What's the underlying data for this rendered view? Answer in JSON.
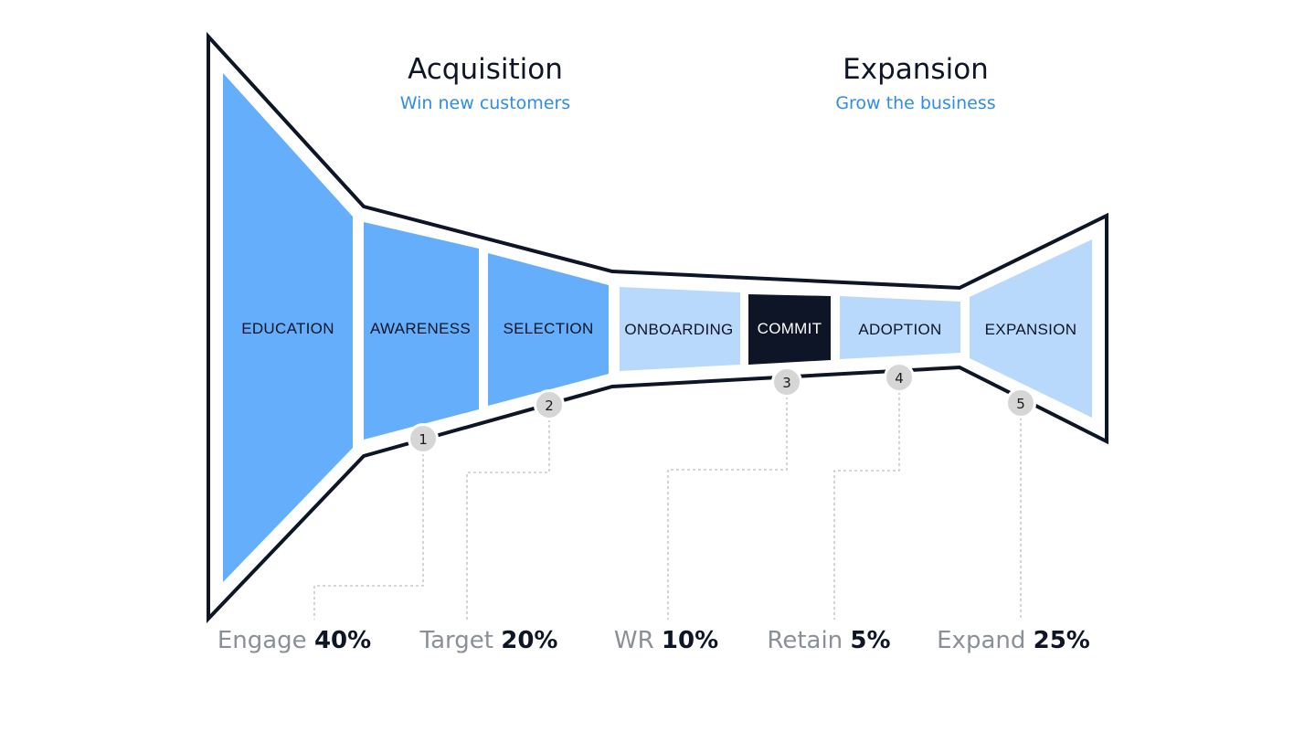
{
  "sections": [
    {
      "title": "Acquisition",
      "subtitle": "Win new customers"
    },
    {
      "title": "Expansion",
      "subtitle": "Grow the business"
    }
  ],
  "stages": [
    {
      "label": "EDUCATION",
      "tone": "primary"
    },
    {
      "label": "AWARENESS",
      "tone": "primary"
    },
    {
      "label": "SELECTION",
      "tone": "primary"
    },
    {
      "label": "ONBOARDING",
      "tone": "light"
    },
    {
      "label": "COMMIT",
      "tone": "dark"
    },
    {
      "label": "ADOPTION",
      "tone": "light"
    },
    {
      "label": "EXPANSION",
      "tone": "light"
    }
  ],
  "markers": [
    "1",
    "2",
    "3",
    "4",
    "5"
  ],
  "metrics": [
    {
      "name": "Engage",
      "value": "40%"
    },
    {
      "name": "Target",
      "value": "20%"
    },
    {
      "name": "WR",
      "value": "10%"
    },
    {
      "name": "Retain",
      "value": "5%"
    },
    {
      "name": "Expand",
      "value": "25%"
    }
  ],
  "colors": {
    "outline": "#0d1526",
    "primary": "#64aefc",
    "light": "#b9d9fc",
    "dark": "#0d1526",
    "marker_fill": "#d6d6d6",
    "connector": "#bdbdbd",
    "accent_text": "#2f8ceb"
  }
}
